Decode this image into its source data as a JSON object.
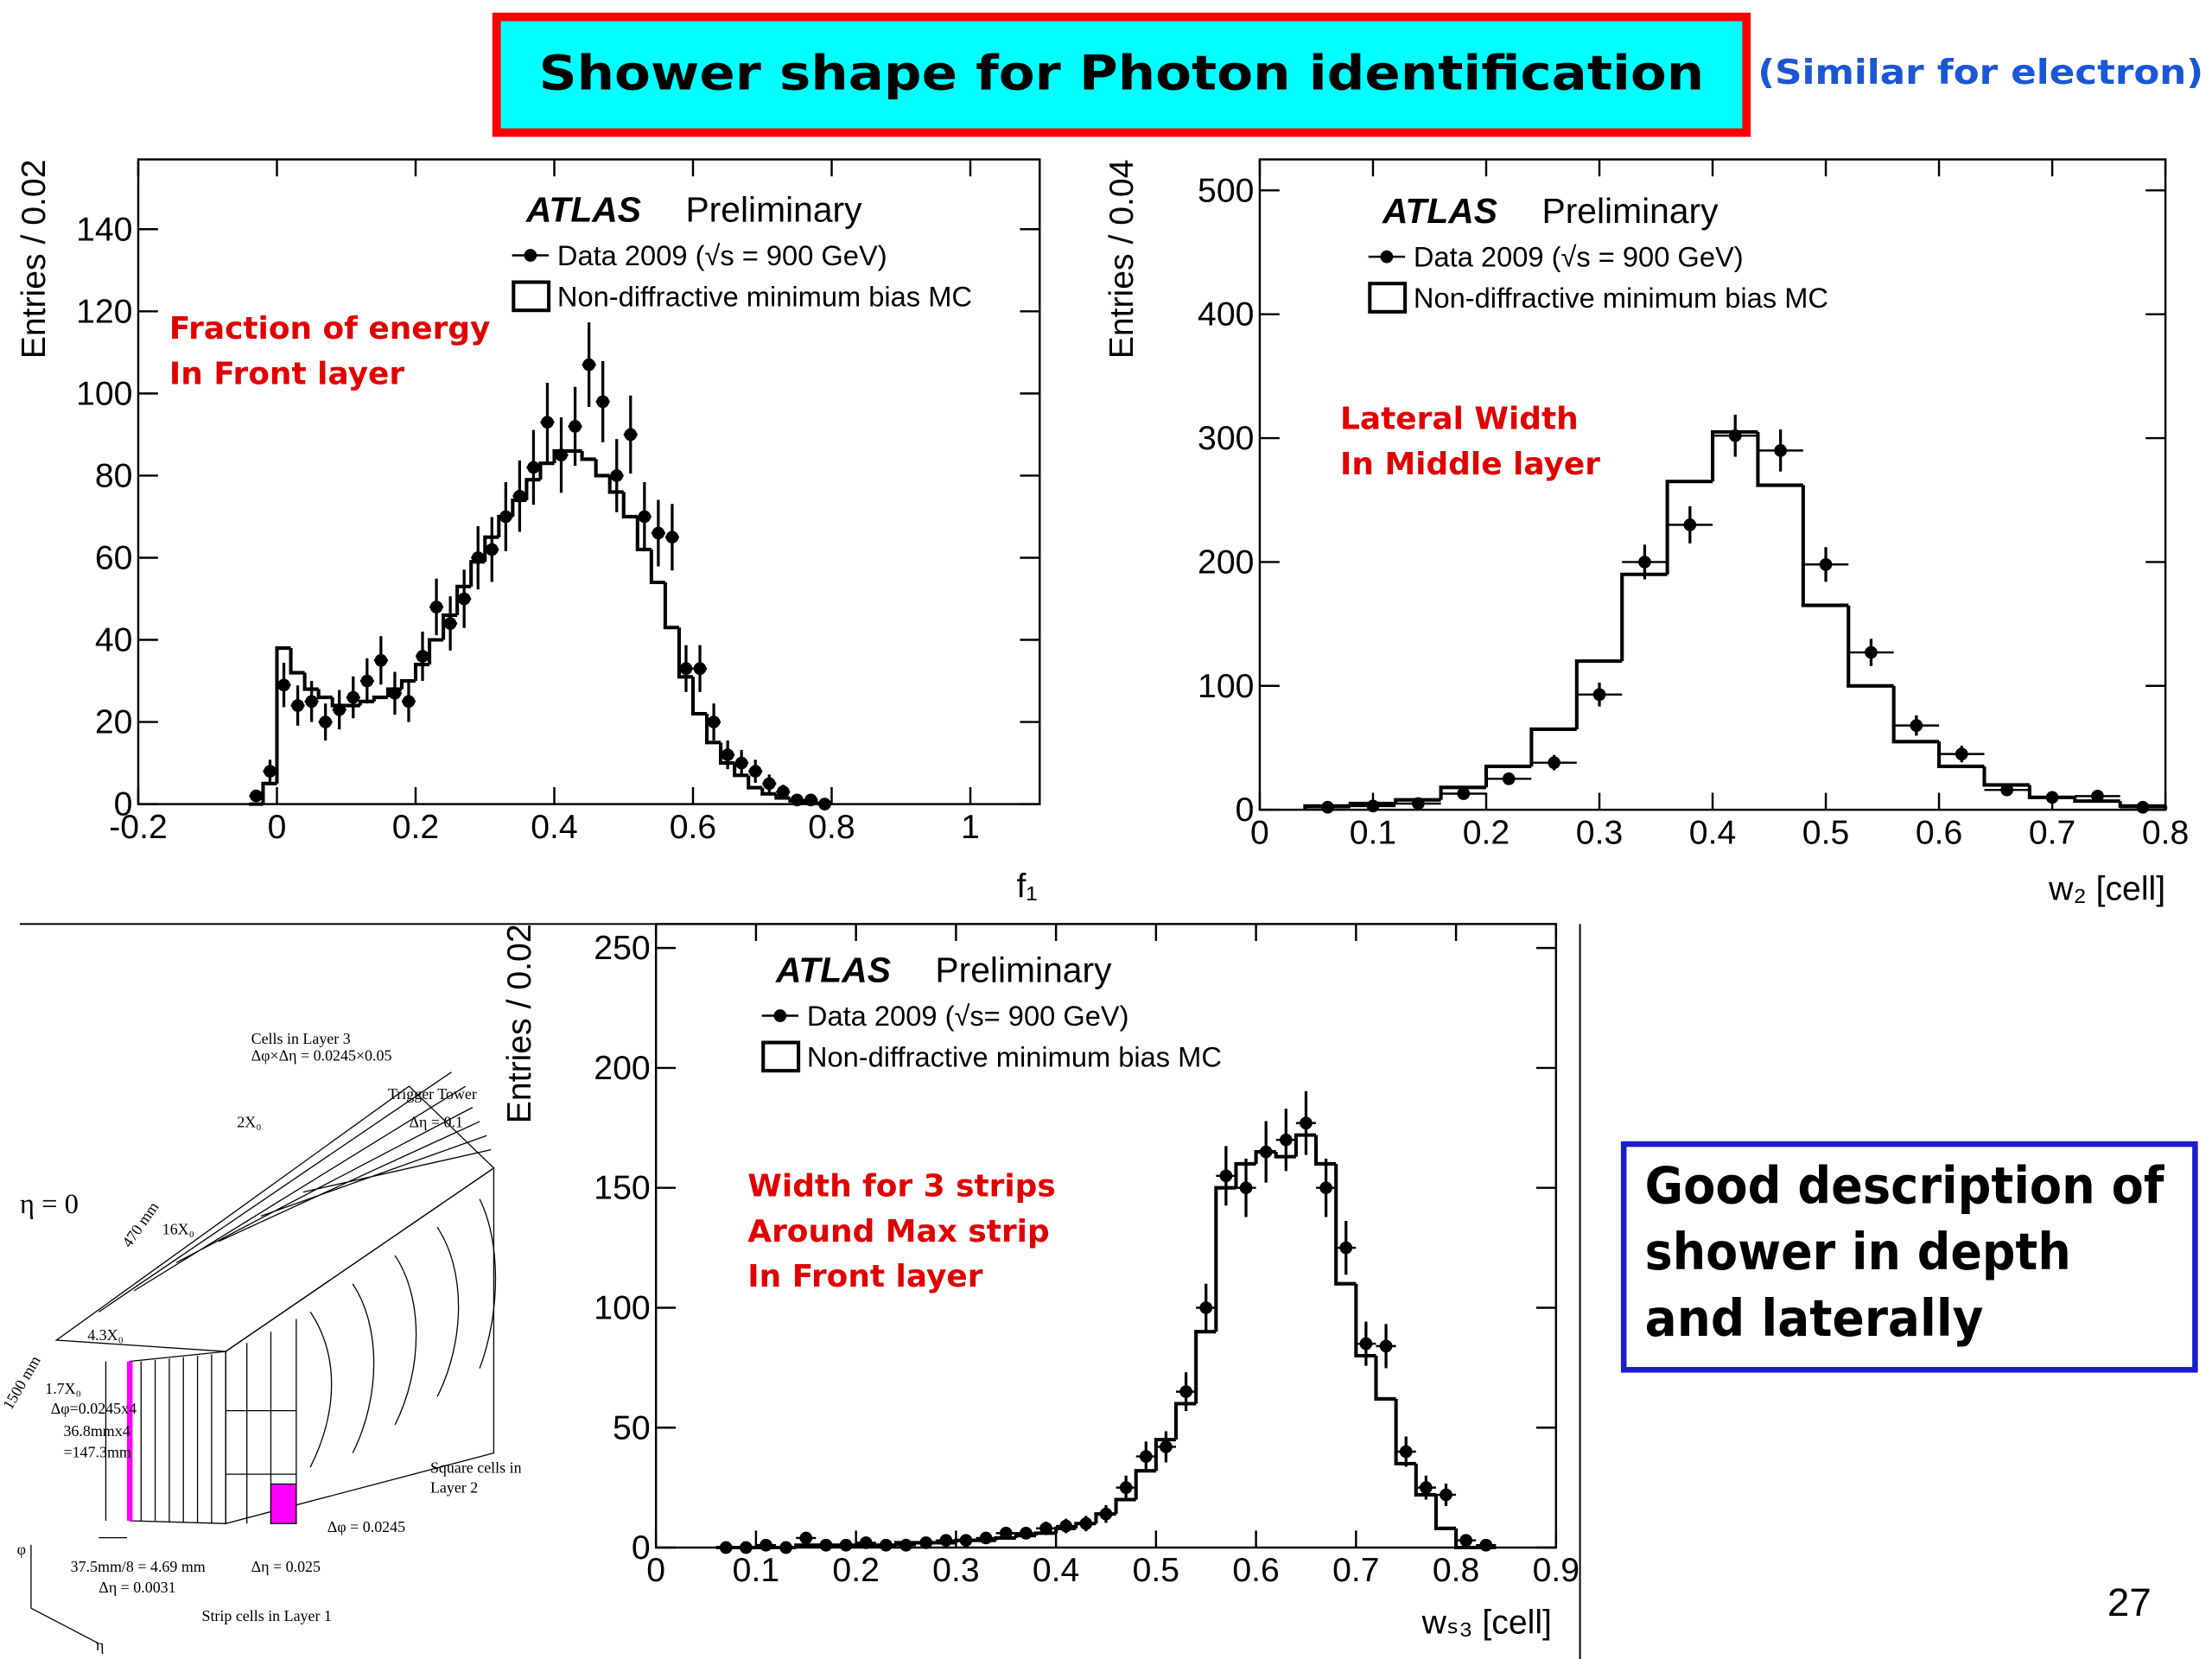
{
  "title": "Shower shape for Photon identification",
  "note": "(Similar for electron)",
  "chart_data": [
    {
      "type": "histogram",
      "experiment": "ATLAS",
      "status": "Preliminary",
      "annotation": [
        "Fraction of energy",
        "In Front layer"
      ],
      "xlabel": "f₁",
      "ylabel": "Entries / 0.02",
      "xlim": [
        -0.2,
        1.1
      ],
      "ylim": [
        0,
        157
      ],
      "xticks": [
        -0.2,
        0,
        0.2,
        0.4,
        0.6,
        0.8,
        1
      ],
      "yticks": [
        0,
        20,
        40,
        60,
        80,
        100,
        120,
        140
      ],
      "bins": [
        -0.04,
        -0.02,
        0,
        0.02,
        0.04,
        0.06,
        0.08,
        0.1,
        0.12,
        0.14,
        0.16,
        0.18,
        0.2,
        0.22,
        0.24,
        0.26,
        0.28,
        0.3,
        0.32,
        0.34,
        0.36,
        0.38,
        0.4,
        0.42,
        0.44,
        0.46,
        0.48,
        0.5,
        0.52,
        0.54,
        0.56,
        0.58,
        0.6,
        0.62,
        0.64,
        0.66,
        0.68,
        0.7,
        0.72,
        0.74,
        0.76,
        0.78,
        0.8
      ],
      "series": [
        {
          "name": "Data 2009 (√s = 900 GeV)",
          "color": "#000000",
          "values": [
            2,
            8,
            29,
            24,
            25,
            20,
            23,
            26,
            30,
            35,
            27,
            25,
            36,
            48,
            44,
            50,
            60,
            62,
            70,
            75,
            82,
            93,
            85,
            92,
            107,
            98,
            80,
            90,
            70,
            66,
            65,
            33,
            33,
            20,
            12,
            10,
            8,
            5,
            3,
            1,
            1,
            0
          ],
          "errors": [
            1.4,
            2.8,
            5.4,
            4.9,
            5,
            4.5,
            4.8,
            5.1,
            5.5,
            5.9,
            5.2,
            5,
            6,
            6.9,
            6.6,
            7.1,
            7.7,
            7.9,
            8.4,
            8.7,
            9.1,
            9.6,
            9.2,
            9.6,
            10.3,
            9.9,
            8.9,
            9.5,
            8.4,
            8.1,
            8.1,
            5.7,
            5.7,
            4.5,
            3.5,
            3.2,
            2.8,
            2.2,
            1.7,
            1,
            1,
            0
          ]
        },
        {
          "name": "Non-diffractive minimum bias MC",
          "color": "#000000",
          "values": [
            0,
            5,
            38,
            32,
            28,
            26,
            24,
            24,
            25,
            26,
            28,
            30,
            34,
            40,
            46,
            53,
            59,
            65,
            70,
            74,
            79,
            83,
            86,
            86,
            84,
            80,
            76,
            70,
            62,
            54,
            43,
            31,
            22,
            15,
            10,
            7,
            4,
            2.5,
            1.5,
            0.8,
            0.5,
            0.2
          ]
        }
      ]
    },
    {
      "type": "histogram",
      "experiment": "ATLAS",
      "status": "Preliminary",
      "annotation": [
        "Lateral Width",
        "In Middle layer"
      ],
      "xlabel": "w₂ [cell]",
      "ylabel": "Entries / 0.04",
      "xlim": [
        0,
        0.8
      ],
      "ylim": [
        0,
        525
      ],
      "xticks": [
        0,
        0.1,
        0.2,
        0.3,
        0.4,
        0.5,
        0.6,
        0.7,
        0.8
      ],
      "yticks": [
        0,
        100,
        200,
        300,
        400,
        500
      ],
      "bins": [
        0.04,
        0.08,
        0.12,
        0.16,
        0.2,
        0.24,
        0.28,
        0.32,
        0.36,
        0.4,
        0.44,
        0.48,
        0.52,
        0.56,
        0.6,
        0.64,
        0.68,
        0.72,
        0.76,
        0.8
      ],
      "series": [
        {
          "name": "Data 2009 (√s = 900 GeV)",
          "color": "#000000",
          "values": [
            2,
            3,
            5,
            13,
            25,
            38,
            93,
            200,
            230,
            302,
            290,
            198,
            127,
            68,
            45,
            16,
            10,
            11,
            2
          ],
          "errors": [
            1.4,
            1.7,
            2.2,
            3.6,
            5,
            6.2,
            9.6,
            14,
            15,
            17,
            17,
            14,
            11,
            8.2,
            6.7,
            4,
            3.2,
            3.3,
            1.4
          ]
        },
        {
          "name": "Non-diffractive minimum bias MC",
          "color": "#000000",
          "values": [
            3,
            5,
            8,
            18,
            35,
            65,
            120,
            190,
            265,
            305,
            262,
            165,
            100,
            55,
            35,
            20,
            10,
            7,
            3
          ]
        }
      ]
    },
    {
      "type": "histogram",
      "experiment": "ATLAS",
      "status": "Preliminary",
      "annotation": [
        "Width for 3 strips",
        "Around Max strip",
        "In Front layer"
      ],
      "xlabel": "wₛ₃ [cell]",
      "ylabel": "Entries / 0.02",
      "xlim": [
        0,
        0.9
      ],
      "ylim": [
        0,
        260
      ],
      "xticks": [
        0,
        0.1,
        0.2,
        0.3,
        0.4,
        0.5,
        0.6,
        0.7,
        0.8,
        0.9
      ],
      "yticks": [
        0,
        50,
        100,
        150,
        200,
        250
      ],
      "bins": [
        0.06,
        0.08,
        0.1,
        0.12,
        0.14,
        0.16,
        0.18,
        0.2,
        0.22,
        0.24,
        0.26,
        0.28,
        0.3,
        0.32,
        0.34,
        0.36,
        0.38,
        0.4,
        0.42,
        0.44,
        0.46,
        0.48,
        0.5,
        0.52,
        0.54,
        0.56,
        0.58,
        0.6,
        0.62,
        0.64,
        0.66,
        0.68,
        0.7,
        0.72,
        0.74,
        0.76,
        0.78,
        0.8,
        0.82,
        0.84
      ],
      "series": [
        {
          "name": "Data 2009 (√s= 900 GeV)",
          "color": "#000000",
          "values": [
            0,
            0,
            1,
            0,
            4,
            1,
            1,
            2,
            1,
            1,
            2,
            3,
            3,
            4,
            6,
            6,
            8,
            9,
            10,
            14,
            25,
            38,
            42,
            65,
            100,
            155,
            150,
            165,
            170,
            177,
            150,
            125,
            85,
            84,
            40,
            25,
            22,
            3,
            1
          ],
          "errors": [
            0,
            0,
            1,
            0,
            2,
            1,
            1,
            1.4,
            1,
            1,
            1.4,
            1.7,
            1.7,
            2,
            2.4,
            2.4,
            2.8,
            3,
            3.2,
            3.7,
            5,
            6.2,
            6.5,
            8.1,
            10,
            12.4,
            12.2,
            12.8,
            13,
            13.3,
            12.2,
            11.2,
            9.2,
            9.2,
            6.3,
            5,
            4.7,
            1.7,
            1
          ]
        },
        {
          "name": "Non-diffractive minimum bias MC",
          "color": "#000000",
          "values": [
            0,
            0,
            0,
            0,
            1,
            1,
            1,
            1,
            1,
            2,
            2,
            2,
            3,
            3,
            4,
            5,
            6,
            8,
            10,
            14,
            20,
            32,
            45,
            60,
            90,
            150,
            160,
            165,
            163,
            172,
            160,
            110,
            80,
            62,
            35,
            22,
            8,
            0,
            0
          ]
        }
      ]
    }
  ],
  "diagram": {
    "labels": [
      "η = 0",
      "Cells in Layer 3",
      "Δφ×Δη = 0.0245×0.05",
      "Trigger Tower",
      "Δη = 0.1",
      "2X₀",
      "470 mm",
      "16X₀",
      "4.3X₀",
      "1.7X₀",
      "1500 mm",
      "Δφ=0.0245x4",
      "36.8mmx4",
      "=147.3mm",
      "Square cells in",
      "Layer 2",
      "Δφ = 0.0245",
      "Δη = 0.025",
      "37.5mm/8 = 4.69 mm",
      "Δη = 0.0031",
      "Strip cells in Layer 1",
      "φ",
      "η"
    ]
  },
  "summary": [
    "Good description of",
    "shower in depth",
    "and laterally"
  ],
  "page_number": "27"
}
